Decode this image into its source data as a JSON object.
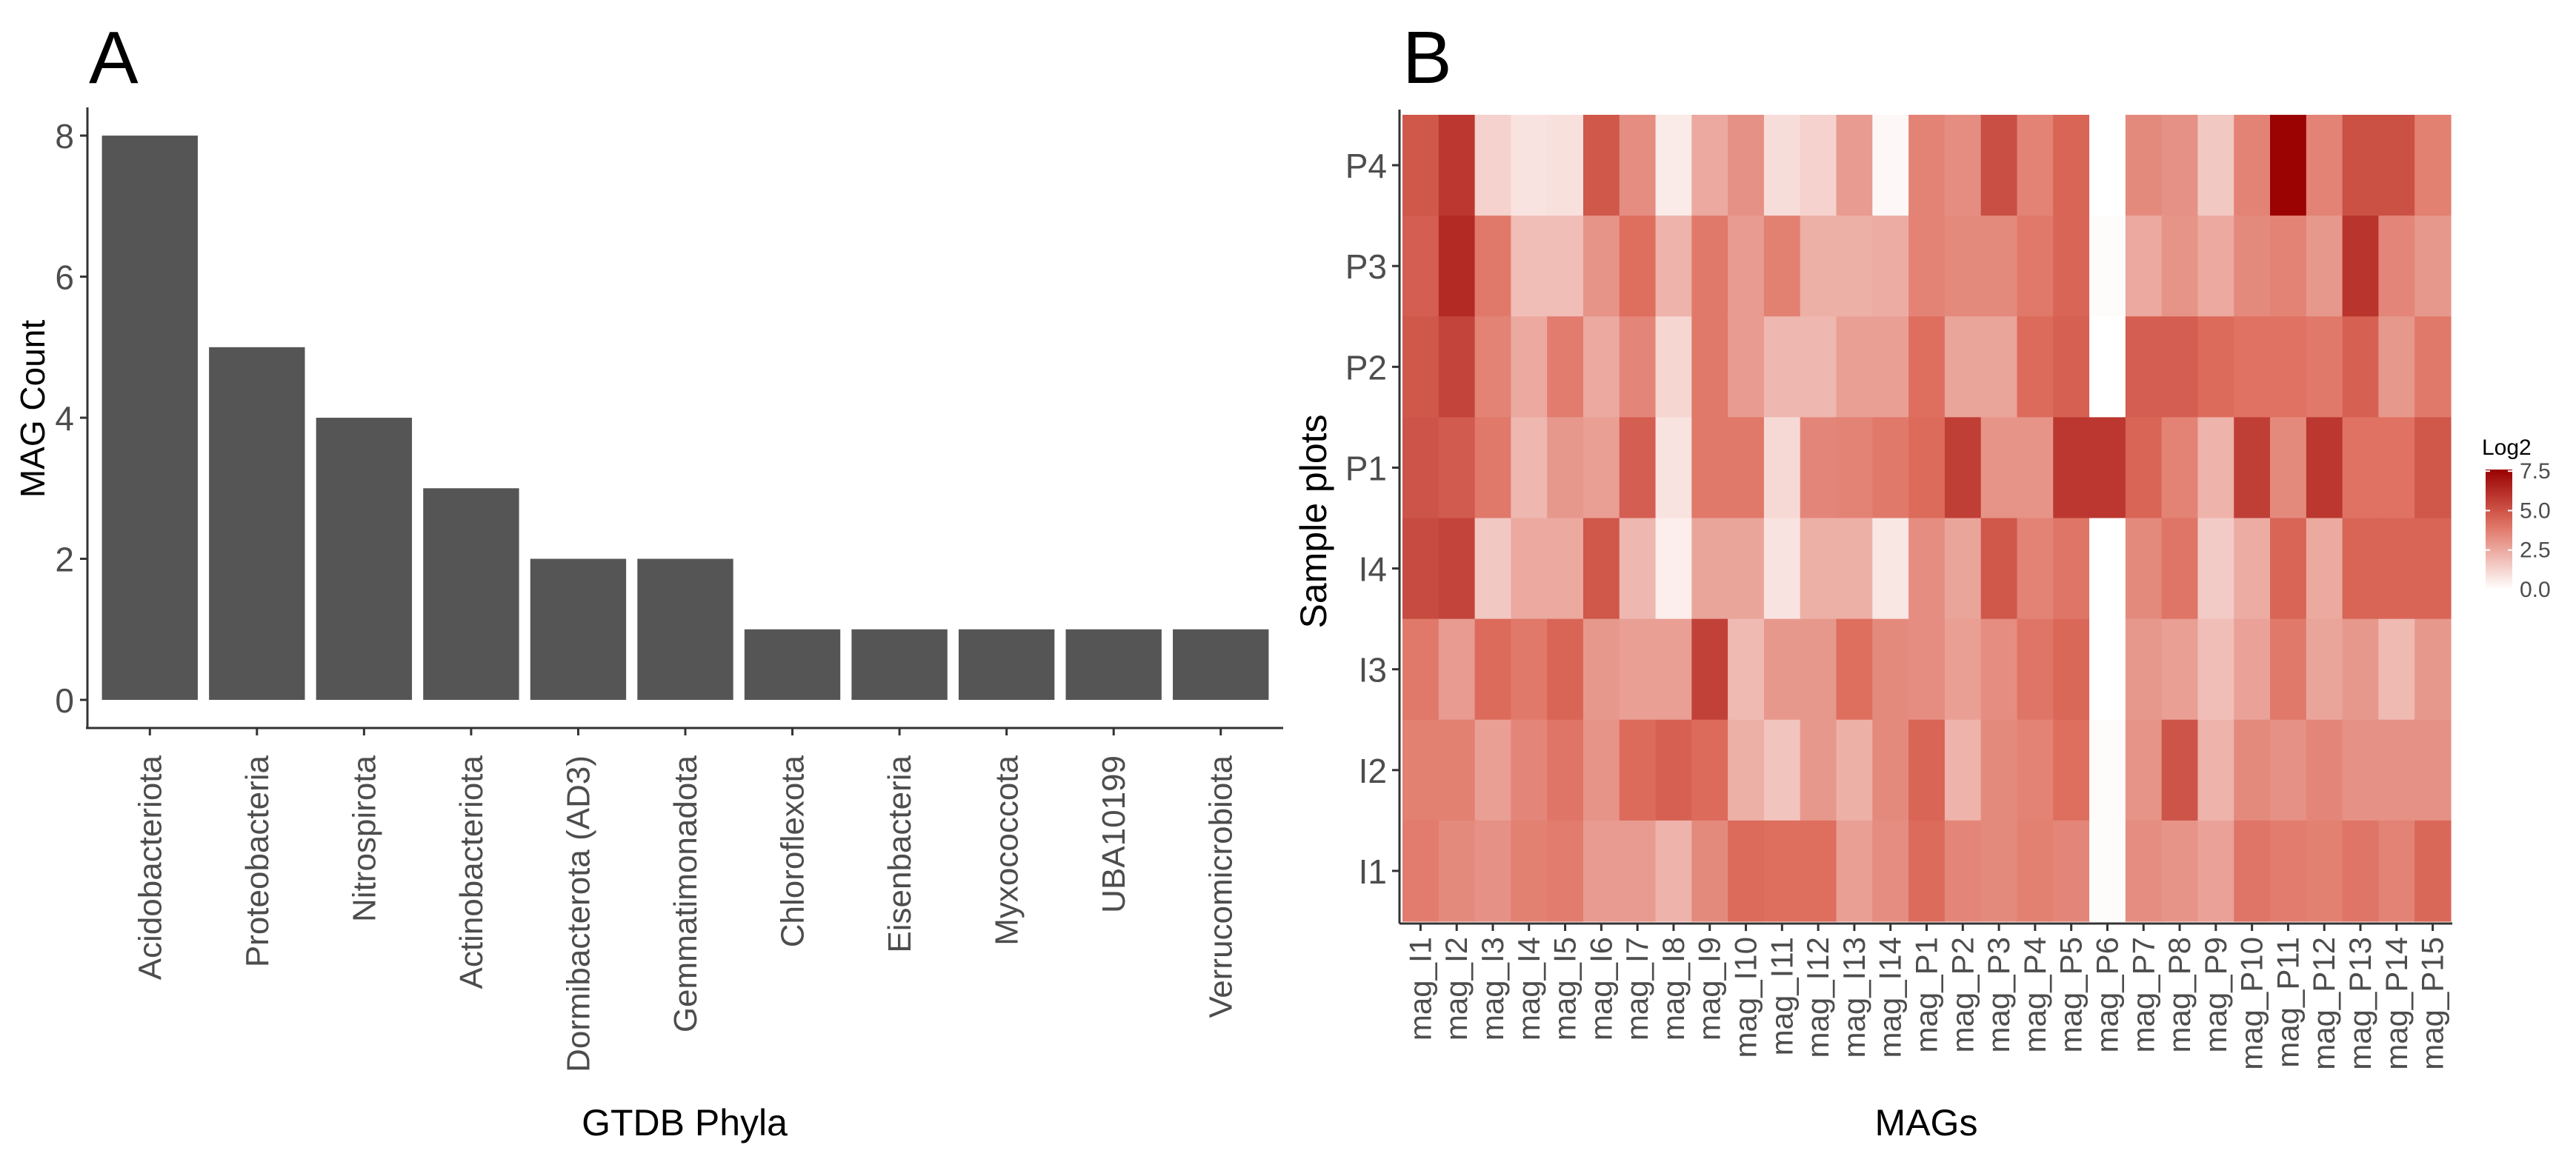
{
  "chart_data": [
    {
      "type": "bar",
      "panel_label": "A",
      "title": "",
      "xlabel": "GTDB Phyla",
      "ylabel": "MAG Count",
      "ylim": [
        0,
        8.4
      ],
      "yticks": [
        "0",
        "2",
        "4",
        "6",
        "8"
      ],
      "categories": [
        "Acidobacteriota",
        "Proteobacteria",
        "Nitrospirota",
        "Actinobacteriota",
        "Dormibacterota (AD3)",
        "Gemmatimonadota",
        "Chloroflexota",
        "Eisenbacteria",
        "Myxococcota",
        "UBA10199",
        "Verrucomicrobiota"
      ],
      "values": [
        8,
        5,
        4,
        3,
        2,
        2,
        1,
        1,
        1,
        1,
        1
      ],
      "bar_color": "#555555"
    },
    {
      "type": "heatmap",
      "panel_label": "B",
      "title": "",
      "xlabel": "MAGs",
      "ylabel": "Sample plots",
      "x": [
        "mag_I1",
        "mag_I2",
        "mag_I3",
        "mag_I4",
        "mag_I5",
        "mag_I6",
        "mag_I7",
        "mag_I8",
        "mag_I9",
        "mag_I10",
        "mag_I11",
        "mag_I12",
        "mag_I13",
        "mag_I14",
        "mag_P1",
        "mag_P2",
        "mag_P3",
        "mag_P4",
        "mag_P5",
        "mag_P6",
        "mag_P7",
        "mag_P8",
        "mag_P9",
        "mag_P10",
        "mag_P11",
        "mag_P12",
        "mag_P13",
        "mag_P14",
        "mag_P15"
      ],
      "y": [
        "P4",
        "P3",
        "P2",
        "P1",
        "I4",
        "I3",
        "I2",
        "I1"
      ],
      "values": [
        [
          4.9,
          5.9,
          1.3,
          0.8,
          0.9,
          4.9,
          3.3,
          0.6,
          2.5,
          3.2,
          1.0,
          1.3,
          2.9,
          0.2,
          3.6,
          3.3,
          5.2,
          3.6,
          4.5,
          0.0,
          3.4,
          3.2,
          1.6,
          3.6,
          7.5,
          3.6,
          5.1,
          5.1,
          3.7
        ],
        [
          4.7,
          6.3,
          3.9,
          1.9,
          1.9,
          3.1,
          4.2,
          2.2,
          3.9,
          2.9,
          3.7,
          2.3,
          2.3,
          2.4,
          3.6,
          3.4,
          3.4,
          3.9,
          4.5,
          0.1,
          2.5,
          3.1,
          2.5,
          3.4,
          3.6,
          3.0,
          6.0,
          3.5,
          3.0
        ],
        [
          4.9,
          5.5,
          3.6,
          2.5,
          3.8,
          2.5,
          3.5,
          1.2,
          3.9,
          2.9,
          2.1,
          2.1,
          2.8,
          2.8,
          4.2,
          2.6,
          2.6,
          4.3,
          4.6,
          0.0,
          4.7,
          4.7,
          4.3,
          4.1,
          4.1,
          3.9,
          4.6,
          3.0,
          3.9
        ],
        [
          5.0,
          4.8,
          3.9,
          2.1,
          3.0,
          2.8,
          4.7,
          0.8,
          3.9,
          3.9,
          1.1,
          3.5,
          3.6,
          3.9,
          4.3,
          5.7,
          3.1,
          3.1,
          5.9,
          5.9,
          4.5,
          3.6,
          2.2,
          5.7,
          3.4,
          5.9,
          4.1,
          4.1,
          4.9
        ],
        [
          5.3,
          5.5,
          1.6,
          2.5,
          2.5,
          4.9,
          2.1,
          0.5,
          2.6,
          2.6,
          0.8,
          2.3,
          2.3,
          0.7,
          3.3,
          2.6,
          4.9,
          3.6,
          4.0,
          0.0,
          3.4,
          4.0,
          1.5,
          2.4,
          4.5,
          2.5,
          4.5,
          4.5,
          4.5
        ],
        [
          3.9,
          2.9,
          4.3,
          3.9,
          4.5,
          3.0,
          2.8,
          2.8,
          5.6,
          2.0,
          3.0,
          3.0,
          4.2,
          3.4,
          3.3,
          2.8,
          3.3,
          4.0,
          4.4,
          0.0,
          3.0,
          2.8,
          1.9,
          2.7,
          3.9,
          2.6,
          3.0,
          2.0,
          3.0
        ],
        [
          3.7,
          3.7,
          2.8,
          3.5,
          4.0,
          3.1,
          4.3,
          4.6,
          4.3,
          2.3,
          1.7,
          3.0,
          2.3,
          3.4,
          4.5,
          2.2,
          3.4,
          3.6,
          4.2,
          0.1,
          3.1,
          5.0,
          2.2,
          3.4,
          3.2,
          3.5,
          3.2,
          3.2,
          3.2
        ],
        [
          3.8,
          3.4,
          3.2,
          3.7,
          3.8,
          2.9,
          2.9,
          2.2,
          3.4,
          4.3,
          4.2,
          4.2,
          2.8,
          3.3,
          4.3,
          3.5,
          3.4,
          3.7,
          3.5,
          0.1,
          3.3,
          3.1,
          2.7,
          4.0,
          3.8,
          3.7,
          4.0,
          3.6,
          4.4
        ]
      ],
      "color_low": "#ffffff",
      "color_high": "#990000",
      "color_range": [
        0,
        7.6
      ],
      "legend": {
        "title": "Log2",
        "ticks": [
          "7.5",
          "5.0",
          "2.5",
          "0.0"
        ],
        "tick_values": [
          7.5,
          5.0,
          2.5,
          0.0
        ],
        "placement": "right"
      }
    }
  ]
}
